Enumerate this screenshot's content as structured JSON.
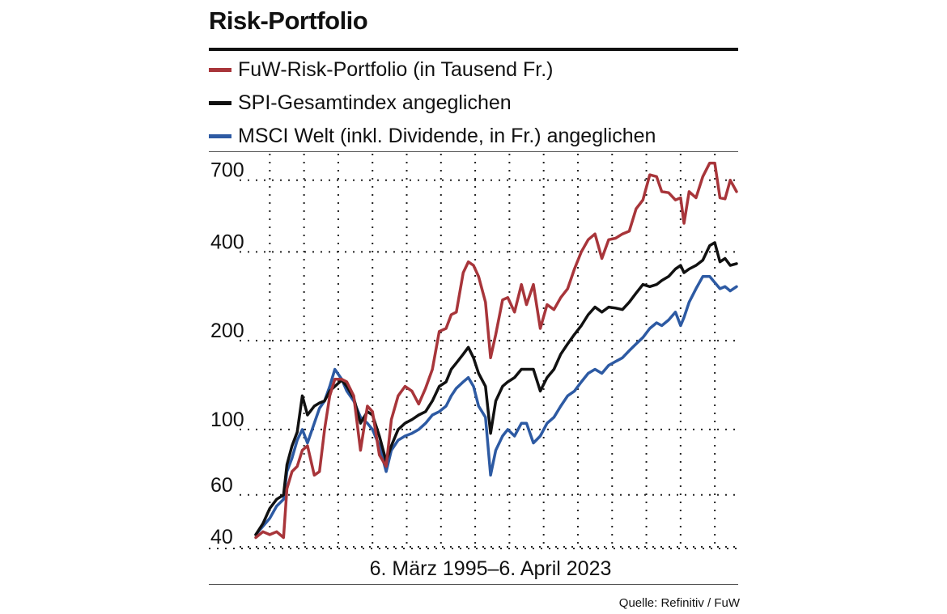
{
  "title": "Risk-Portfolio",
  "source": "Quelle: Refinitiv / FuW",
  "colors": {
    "risk": "#a8353a",
    "spi": "#111111",
    "msci": "#2d5aa3"
  },
  "chart_data": {
    "type": "line",
    "title": "Risk-Portfolio",
    "xlabel": "6. März 1995–6. April 2023",
    "ylabel": "",
    "yscale": "log",
    "ylim": [
      40,
      850
    ],
    "xlim": [
      1995.18,
      2023.27
    ],
    "yticks": [
      40,
      60,
      100,
      200,
      400,
      700
    ],
    "ytick_labels": [
      "40",
      "60",
      "100",
      "200",
      "400",
      "700"
    ],
    "grid": true,
    "legend_position": "top",
    "series": [
      {
        "name": "FuW-Risk-Portfolio (in Tausend Fr.)",
        "color_key": "risk",
        "x": [
          1995.18,
          1995.6,
          1996.0,
          1996.4,
          1996.8,
          1997.0,
          1997.3,
          1997.6,
          1997.9,
          1998.2,
          1998.6,
          1998.9,
          1999.2,
          1999.5,
          1999.8,
          2000.2,
          2000.5,
          2000.9,
          2001.3,
          2001.7,
          2002.0,
          2002.4,
          2002.8,
          2003.1,
          2003.5,
          2003.9,
          2004.3,
          2004.7,
          2005.1,
          2005.5,
          2005.9,
          2006.3,
          2006.6,
          2006.9,
          2007.3,
          2007.6,
          2007.9,
          2008.2,
          2008.6,
          2008.9,
          2009.2,
          2009.6,
          2009.9,
          2010.3,
          2010.7,
          2011.0,
          2011.4,
          2011.8,
          2012.2,
          2012.6,
          2013.0,
          2013.4,
          2013.8,
          2014.2,
          2014.6,
          2015.0,
          2015.4,
          2015.8,
          2016.2,
          2016.6,
          2017.0,
          2017.4,
          2017.8,
          2018.2,
          2018.6,
          2018.9,
          2019.3,
          2019.7,
          2020.0,
          2020.2,
          2020.5,
          2020.9,
          2021.3,
          2021.7,
          2022.0,
          2022.3,
          2022.6,
          2022.9,
          2023.27
        ],
        "y": [
          43,
          45,
          44,
          45,
          43,
          63,
          72,
          75,
          85,
          88,
          70,
          72,
          100,
          130,
          148,
          148,
          145,
          130,
          85,
          120,
          115,
          82,
          75,
          108,
          130,
          140,
          135,
          122,
          138,
          160,
          215,
          220,
          245,
          250,
          340,
          370,
          360,
          330,
          270,
          175,
          210,
          275,
          280,
          250,
          310,
          265,
          310,
          220,
          265,
          255,
          280,
          300,
          350,
          400,
          440,
          460,
          380,
          440,
          445,
          460,
          470,
          560,
          600,
          730,
          720,
          640,
          635,
          600,
          610,
          500,
          640,
          610,
          720,
          800,
          800,
          610,
          605,
          700,
          640
        ]
      },
      {
        "name": "SPI-Gesamtindex angeglichen",
        "color_key": "spi",
        "x": [
          1995.18,
          1995.6,
          1996.0,
          1996.4,
          1996.8,
          1997.0,
          1997.3,
          1997.6,
          1997.9,
          1998.2,
          1998.6,
          1998.9,
          1999.2,
          1999.5,
          1999.8,
          2000.2,
          2000.5,
          2000.9,
          2001.3,
          2001.7,
          2002.0,
          2002.4,
          2002.8,
          2003.1,
          2003.5,
          2003.9,
          2004.3,
          2004.7,
          2005.1,
          2005.5,
          2005.9,
          2006.3,
          2006.6,
          2006.9,
          2007.3,
          2007.6,
          2007.9,
          2008.2,
          2008.6,
          2008.9,
          2009.2,
          2009.6,
          2009.9,
          2010.3,
          2010.7,
          2011.0,
          2011.4,
          2011.8,
          2012.2,
          2012.6,
          2013.0,
          2013.4,
          2013.8,
          2014.2,
          2014.6,
          2015.0,
          2015.4,
          2015.8,
          2016.2,
          2016.6,
          2017.0,
          2017.4,
          2017.8,
          2018.2,
          2018.6,
          2018.9,
          2019.3,
          2019.7,
          2020.0,
          2020.2,
          2020.5,
          2020.9,
          2021.3,
          2021.7,
          2022.0,
          2022.3,
          2022.6,
          2022.9,
          2023.27
        ],
        "y": [
          44,
          48,
          54,
          58,
          60,
          76,
          88,
          98,
          130,
          112,
          120,
          123,
          125,
          135,
          140,
          147,
          140,
          128,
          105,
          115,
          112,
          95,
          78,
          88,
          100,
          105,
          108,
          112,
          115,
          125,
          140,
          145,
          160,
          168,
          180,
          190,
          175,
          155,
          140,
          97,
          125,
          140,
          145,
          150,
          160,
          160,
          160,
          135,
          150,
          160,
          180,
          195,
          210,
          225,
          245,
          260,
          250,
          260,
          258,
          255,
          270,
          290,
          310,
          305,
          310,
          320,
          330,
          350,
          360,
          340,
          350,
          360,
          375,
          420,
          430,
          370,
          380,
          360,
          365
        ]
      },
      {
        "name": "MSCI Welt (inkl. Dividende, in Fr.) angeglichen",
        "color_key": "msci",
        "x": [
          1995.18,
          1995.6,
          1996.0,
          1996.4,
          1996.8,
          1997.0,
          1997.3,
          1997.6,
          1997.9,
          1998.2,
          1998.6,
          1998.9,
          1999.2,
          1999.5,
          1999.8,
          2000.2,
          2000.5,
          2000.9,
          2001.3,
          2001.7,
          2002.0,
          2002.4,
          2002.8,
          2003.1,
          2003.5,
          2003.9,
          2004.3,
          2004.7,
          2005.1,
          2005.5,
          2005.9,
          2006.3,
          2006.6,
          2006.9,
          2007.3,
          2007.6,
          2007.9,
          2008.2,
          2008.6,
          2008.9,
          2009.2,
          2009.6,
          2009.9,
          2010.3,
          2010.7,
          2011.0,
          2011.4,
          2011.8,
          2012.2,
          2012.6,
          2013.0,
          2013.4,
          2013.8,
          2014.2,
          2014.6,
          2015.0,
          2015.4,
          2015.8,
          2016.2,
          2016.6,
          2017.0,
          2017.4,
          2017.8,
          2018.2,
          2018.6,
          2018.9,
          2019.3,
          2019.7,
          2020.0,
          2020.2,
          2020.5,
          2020.9,
          2021.3,
          2021.7,
          2022.0,
          2022.3,
          2022.6,
          2022.9,
          2023.27
        ],
        "y": [
          44,
          47,
          50,
          55,
          58,
          72,
          80,
          92,
          100,
          90,
          105,
          118,
          125,
          140,
          160,
          148,
          135,
          125,
          110,
          105,
          100,
          88,
          72,
          85,
          92,
          95,
          97,
          100,
          105,
          112,
          115,
          120,
          130,
          138,
          145,
          150,
          140,
          120,
          110,
          70,
          85,
          95,
          100,
          95,
          105,
          105,
          90,
          95,
          105,
          110,
          120,
          130,
          135,
          145,
          155,
          160,
          155,
          165,
          170,
          175,
          185,
          195,
          205,
          220,
          230,
          225,
          235,
          250,
          225,
          240,
          270,
          300,
          330,
          330,
          315,
          300,
          305,
          295,
          305
        ]
      }
    ]
  }
}
